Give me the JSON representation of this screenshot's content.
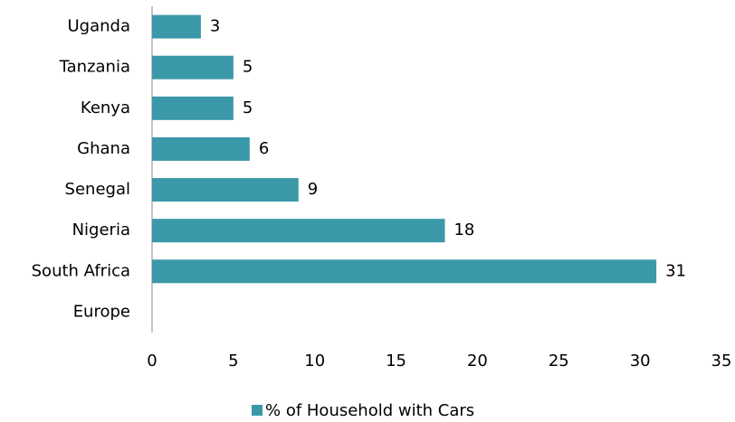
{
  "chart_data": {
    "type": "bar",
    "orientation": "horizontal",
    "categories": [
      "Uganda",
      "Tanzania",
      "Kenya",
      "Ghana",
      "Senegal",
      "Nigeria",
      "South Africa",
      "Europe"
    ],
    "series": [
      {
        "name": "% of Household with Cars",
        "color": "#3a98a8",
        "values": [
          3,
          5,
          5,
          6,
          9,
          18,
          31,
          null
        ]
      }
    ],
    "xlim": [
      0,
      35
    ],
    "xticks": [
      0,
      5,
      10,
      15,
      20,
      25,
      30,
      35
    ],
    "grid": false,
    "legend": "bottom"
  }
}
